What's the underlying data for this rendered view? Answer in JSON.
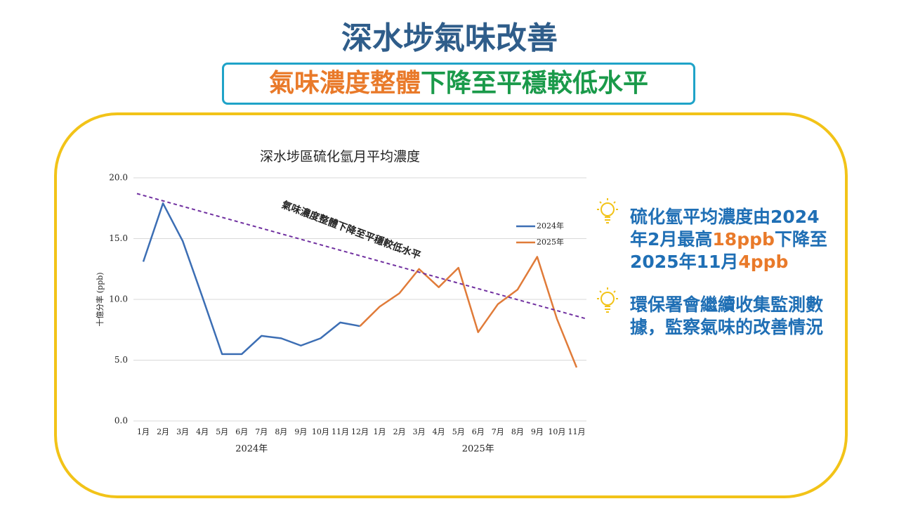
{
  "title": "深水埗氣味改善",
  "subtitle": [
    {
      "text": "氣味濃度整體",
      "color": "#e97a2a"
    },
    {
      "text": "下降至平穩較低水平",
      "color": "#1a9a4a"
    }
  ],
  "notes": [
    [
      {
        "text": "硫化氫平均濃度由2024年2月最高",
        "color": "#1f6fb5"
      },
      {
        "text": "18ppb",
        "color": "#e97a2a"
      },
      {
        "text": "下降至2025年11月",
        "color": "#1f6fb5"
      },
      {
        "text": "4ppb",
        "color": "#e97a2a"
      }
    ],
    [
      {
        "text": "環保署會繼續收集監測數據，監察氣味的改善情況",
        "color": "#1f6fb5"
      }
    ]
  ],
  "chart_data": {
    "type": "line",
    "title": "深水埗區硫化氫月平均濃度",
    "y_label": "十億分率 (ppb)",
    "categories": [
      "1月",
      "2月",
      "3月",
      "4月",
      "5月",
      "6月",
      "7月",
      "8月",
      "9月",
      "10月",
      "11月",
      "12月",
      "1月",
      "2月",
      "3月",
      "4月",
      "5月",
      "6月",
      "7月",
      "8月",
      "9月",
      "10月",
      "11月"
    ],
    "group_labels": [
      "2024年",
      "2025年"
    ],
    "series": [
      {
        "name": "2024年",
        "color": "#3c6eb4",
        "values": [
          13.1,
          17.9,
          14.8,
          10.2,
          5.5,
          5.5,
          7.0,
          6.8,
          6.2,
          6.8,
          8.1,
          7.8,
          null,
          null,
          null,
          null,
          null,
          null,
          null,
          null,
          null,
          null,
          null
        ]
      },
      {
        "name": "2025年",
        "color": "#e07b39",
        "values": [
          null,
          null,
          null,
          null,
          null,
          null,
          null,
          null,
          null,
          null,
          null,
          7.8,
          9.4,
          10.5,
          12.5,
          11.0,
          12.6,
          7.3,
          9.6,
          10.8,
          13.5,
          8.4,
          4.4
        ]
      }
    ],
    "trendline": {
      "label": "氣味濃度整體下降至平穩較低水平",
      "color": "#7030a0",
      "values": [
        18.7,
        8.4
      ]
    },
    "ylim": [
      0,
      20
    ],
    "yticks": [
      {
        "value": 0,
        "label": "0.0"
      },
      {
        "value": 5,
        "label": "5.0"
      },
      {
        "value": 10,
        "label": "10.0"
      },
      {
        "value": 15,
        "label": "15.0"
      },
      {
        "value": 20,
        "label": "20.0"
      }
    ],
    "grid": true
  }
}
